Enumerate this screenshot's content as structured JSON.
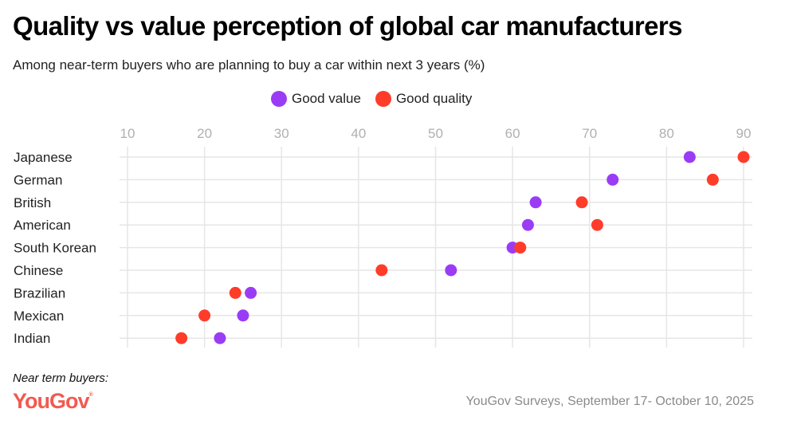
{
  "chart_data": {
    "type": "scatter",
    "subtype": "dot-plot",
    "title": "Quality vs value perception of global car manufacturers",
    "subtitle": "Among near-term buyers who are planning to buy a car within next 3 years (%)",
    "categories": [
      "Japanese",
      "German",
      "British",
      "American",
      "South Korean",
      "Chinese",
      "Brazilian",
      "Mexican",
      "Indian"
    ],
    "series": [
      {
        "name": "Good value",
        "color": "#9b3cf5",
        "values": [
          83,
          73,
          63,
          62,
          60,
          52,
          26,
          25,
          22
        ]
      },
      {
        "name": "Good quality",
        "color": "#ff3c2a",
        "values": [
          90,
          86,
          69,
          71,
          61,
          43,
          24,
          20,
          17
        ]
      }
    ],
    "xticks": [
      10,
      20,
      30,
      40,
      50,
      60,
      70,
      80,
      90
    ],
    "xlim": [
      10,
      90
    ],
    "xlabel": "",
    "ylabel": "",
    "grid": true,
    "legend_position": "top-center"
  },
  "footer": {
    "note": "Near term buyers:",
    "logo": "YouGov",
    "source": "YouGov Surveys, September 17- October 10, 2025"
  }
}
